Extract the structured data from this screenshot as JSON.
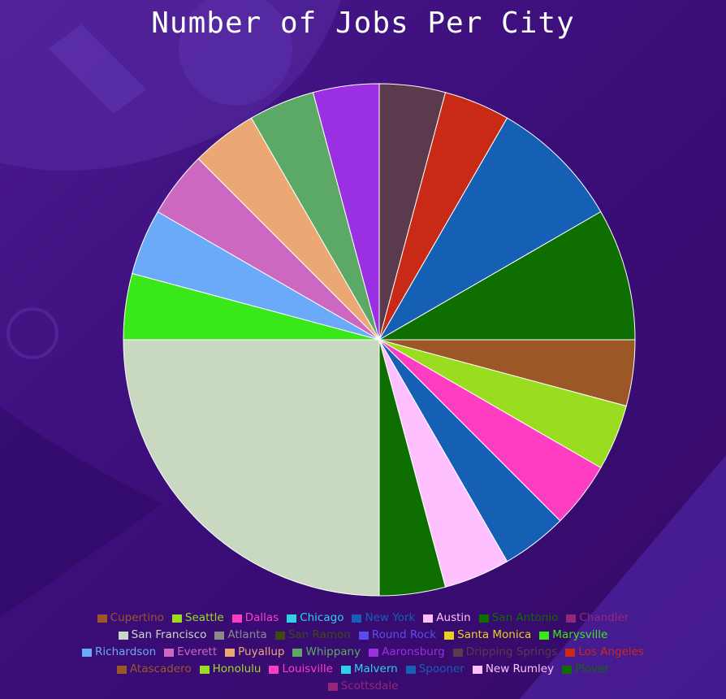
{
  "chart_data": {
    "type": "pie",
    "title": "Number of Jobs Per City",
    "legend_position": "bottom",
    "slices": [
      {
        "label": "Cupertino",
        "value": 1,
        "color": "#9c5727"
      },
      {
        "label": "Seattle",
        "value": 1,
        "color": "#9adc1f"
      },
      {
        "label": "Dallas",
        "value": 1,
        "color": "#ff3dc3"
      },
      {
        "label": "Chicago",
        "value": 0,
        "color": "#2ed2e6"
      },
      {
        "label": "New York",
        "value": 1,
        "color": "#1560b4"
      },
      {
        "label": "Austin",
        "value": 1,
        "color": "#ffc0ff"
      },
      {
        "label": "San Antonio",
        "value": 1,
        "color": "#0e6e00"
      },
      {
        "label": "Chandler",
        "value": 0,
        "color": "#93287a"
      },
      {
        "label": "San Francisco",
        "value": 6,
        "color": "#c9d9c1"
      },
      {
        "label": "Atlanta",
        "value": 0,
        "color": "#8a8a8a"
      },
      {
        "label": "San Ramon",
        "value": 0,
        "color": "#3d4a12"
      },
      {
        "label": "Round Rock",
        "value": 0,
        "color": "#5b4cf0"
      },
      {
        "label": "Santa Monica",
        "value": 0,
        "color": "#e8d21c"
      },
      {
        "label": "Marysville",
        "value": 1,
        "color": "#38e818"
      },
      {
        "label": "Richardson",
        "value": 1,
        "color": "#6aaaf8"
      },
      {
        "label": "Everett",
        "value": 1,
        "color": "#cc68c0"
      },
      {
        "label": "Puyallup",
        "value": 1,
        "color": "#eca874"
      },
      {
        "label": "Whippany",
        "value": 1,
        "color": "#5ca866"
      },
      {
        "label": "Aaronsburg",
        "value": 1,
        "color": "#9b30e2"
      },
      {
        "label": "Dripping Springs",
        "value": 1,
        "color": "#5b3a4e"
      },
      {
        "label": "Los Angeles",
        "value": 1,
        "color": "#c92a15"
      },
      {
        "label": "Atascadero",
        "value": 0,
        "color": "#9c5727"
      },
      {
        "label": "Honolulu",
        "value": 0,
        "color": "#9adc1f"
      },
      {
        "label": "Louisville",
        "value": 0,
        "color": "#ff3dc3"
      },
      {
        "label": "Malvern",
        "value": 0,
        "color": "#2ed2e6"
      },
      {
        "label": "Spooner",
        "value": 2,
        "color": "#1560b4"
      },
      {
        "label": "New Rumley",
        "value": 0,
        "color": "#ffc0ff"
      },
      {
        "label": "Plover",
        "value": 2,
        "color": "#0e6e00"
      },
      {
        "label": "Scottsdale",
        "value": 0,
        "color": "#93287a"
      }
    ]
  }
}
